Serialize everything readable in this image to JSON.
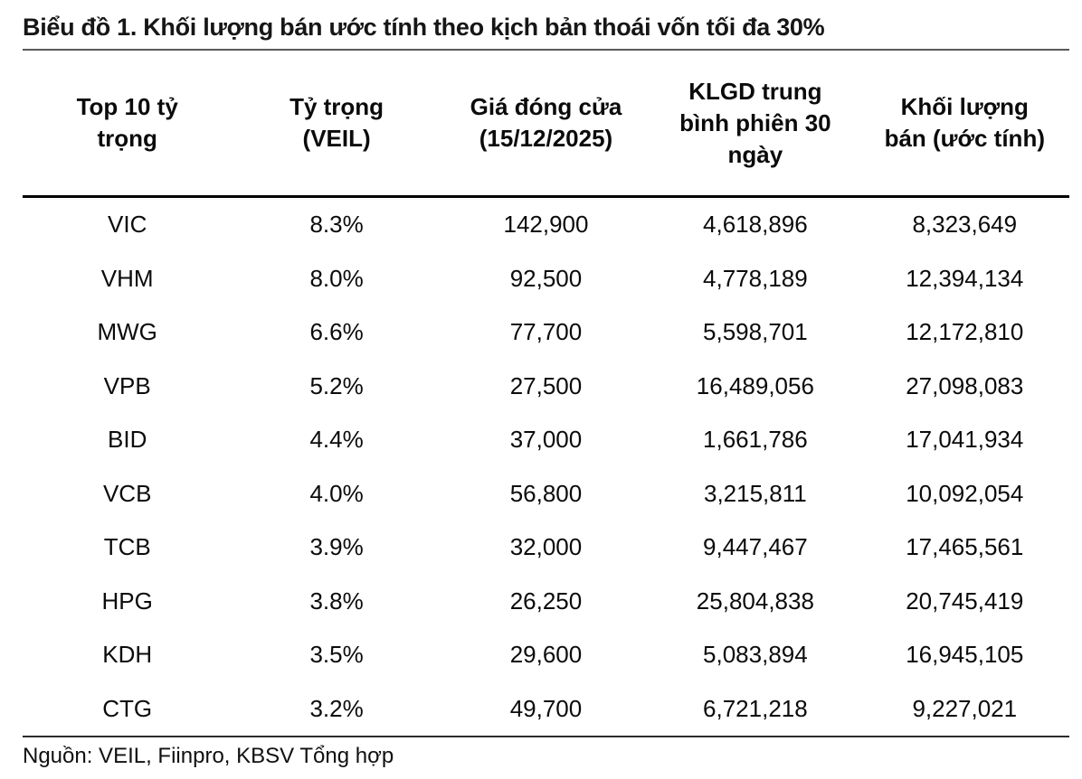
{
  "title": "Biểu đồ 1. Khối lượng bán ước tính theo kịch bản thoái vốn tối đa 30%",
  "chart_data": {
    "type": "table",
    "title": "Biểu đồ 1. Khối lượng bán ước tính theo kịch bản thoái vốn tối đa 30%",
    "columns": [
      "Top 10 tỷ trọng",
      "Tỷ trọng (VEIL)",
      "Giá đóng cửa (15/12/2025)",
      "KLGD trung bình phiên 30 ngày",
      "Khối lượng bán (ước tính)"
    ],
    "column_display": [
      "Top 10 tỷ\ntrọng",
      "Tỷ trọng\n(VEIL)",
      "Giá đóng cửa\n(15/12/2025)",
      "KLGD trung\nbình phiên 30\nngày",
      "Khối lượng\nbán (ước tính)"
    ],
    "rows": [
      [
        "VIC",
        "8.3%",
        "142,900",
        "4,618,896",
        "8,323,649"
      ],
      [
        "VHM",
        "8.0%",
        "92,500",
        "4,778,189",
        "12,394,134"
      ],
      [
        "MWG",
        "6.6%",
        "77,700",
        "5,598,701",
        "12,172,810"
      ],
      [
        "VPB",
        "5.2%",
        "27,500",
        "16,489,056",
        "27,098,083"
      ],
      [
        "BID",
        "4.4%",
        "37,000",
        "1,661,786",
        "17,041,934"
      ],
      [
        "VCB",
        "4.0%",
        "56,800",
        "3,215,811",
        "10,092,054"
      ],
      [
        "TCB",
        "3.9%",
        "32,000",
        "9,447,467",
        "17,465,561"
      ],
      [
        "HPG",
        "3.8%",
        "26,250",
        "25,804,838",
        "20,745,419"
      ],
      [
        "KDH",
        "3.5%",
        "29,600",
        "5,083,894",
        "16,945,105"
      ],
      [
        "CTG",
        "3.2%",
        "49,700",
        "6,721,218",
        "9,227,021"
      ]
    ],
    "source": "Nguồn: VEIL, Fiinpro, KBSV Tổng hợp",
    "text_color": "#0b0b0b",
    "title_rule_color": "#58585a",
    "header_rule_color": "#000000",
    "footer_rule_color": "#2b2b2b"
  }
}
